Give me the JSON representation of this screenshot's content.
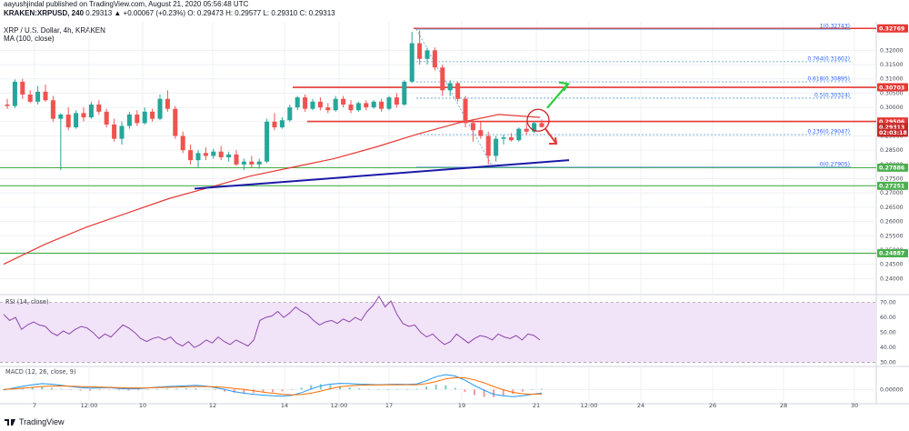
{
  "header": {
    "publisher": "aayushjindal published on TradingView.com, August 21, 2020 05:56:48 UTC",
    "symbol": "KRAKEN:XRPUSD, 240",
    "ohlc": "0.29313 ▲ +0.00067 (+0.23%) O: 0.29473 H: 0.29577 L: 0.29310 C: 0.29313"
  },
  "legend": {
    "title": "XRP / U.S. Dollar, 4h, KRAKEN",
    "ma": "MA (100, close)"
  },
  "footer": {
    "brand": "TradingView"
  },
  "colors": {
    "up": "#26a69a",
    "down": "#ef5350",
    "ma": "#e53935",
    "trendline": "#1a1aa8",
    "support": "#4caf50",
    "resistance": "#e53935",
    "fib": "#5b9bd5",
    "rsi": "#8e44ad",
    "macd_line": "#2196f3",
    "signal_line": "#ff6d00",
    "arrow_up": "#2ecc40"
  },
  "chart_data": [
    {
      "type": "candlestick",
      "title": "XRP / U.S. Dollar, 4h, KRAKEN",
      "ylim": [
        0.235,
        0.33
      ],
      "ticks": [
        "0.32000",
        "0.31500",
        "0.31000",
        "0.30500",
        "0.30000",
        "0.29500",
        "0.29000",
        "0.28500",
        "0.28000",
        "0.27500",
        "0.27000",
        "0.26500",
        "0.26000",
        "0.25500",
        "0.25000",
        "0.24500",
        "0.24000"
      ],
      "tick_values": [
        0.32,
        0.315,
        0.31,
        0.305,
        0.3,
        0.295,
        0.29,
        0.285,
        0.28,
        0.275,
        0.27,
        0.265,
        0.26,
        0.255,
        0.25,
        0.245,
        0.24
      ],
      "xlim": [
        0,
        1000
      ],
      "x_ticks": [
        "7",
        "12:00",
        "10",
        "12",
        "14",
        "12:00",
        "17",
        "19",
        "21",
        "12:00",
        "24",
        "26",
        "28",
        "30"
      ],
      "x_tick_positions": [
        38,
        98,
        157,
        234,
        313,
        373,
        428,
        508,
        590,
        648,
        705,
        784,
        862,
        940
      ],
      "candles": [
        [
          0.301,
          0.303,
          0.2995,
          0.3005
        ],
        [
          0.3005,
          0.3098,
          0.2998,
          0.309
        ],
        [
          0.309,
          0.31,
          0.303,
          0.3045
        ],
        [
          0.3045,
          0.306,
          0.3015,
          0.302
        ],
        [
          0.302,
          0.3075,
          0.301,
          0.3055
        ],
        [
          0.3055,
          0.308,
          0.302,
          0.3025
        ],
        [
          0.3025,
          0.304,
          0.295,
          0.296
        ],
        [
          0.296,
          0.298,
          0.278,
          0.2975
        ],
        [
          0.2975,
          0.3,
          0.292,
          0.293
        ],
        [
          0.293,
          0.299,
          0.2925,
          0.298
        ],
        [
          0.298,
          0.3,
          0.295,
          0.2965
        ],
        [
          0.2965,
          0.302,
          0.296,
          0.301
        ],
        [
          0.301,
          0.3025,
          0.2975,
          0.2985
        ],
        [
          0.2985,
          0.2995,
          0.293,
          0.294
        ],
        [
          0.294,
          0.296,
          0.288,
          0.289
        ],
        [
          0.289,
          0.295,
          0.287,
          0.2935
        ],
        [
          0.2935,
          0.2985,
          0.2925,
          0.2975
        ],
        [
          0.2975,
          0.299,
          0.2935,
          0.2945
        ],
        [
          0.2945,
          0.3,
          0.294,
          0.2985
        ],
        [
          0.2985,
          0.2995,
          0.295,
          0.296
        ],
        [
          0.296,
          0.3045,
          0.2955,
          0.303
        ],
        [
          0.303,
          0.306,
          0.2985,
          0.2995
        ],
        [
          0.2995,
          0.3005,
          0.289,
          0.29
        ],
        [
          0.29,
          0.2915,
          0.284,
          0.285
        ],
        [
          0.285,
          0.287,
          0.28,
          0.2815
        ],
        [
          0.2815,
          0.285,
          0.279,
          0.284
        ],
        [
          0.284,
          0.286,
          0.2815,
          0.283
        ],
        [
          0.283,
          0.2855,
          0.282,
          0.2845
        ],
        [
          0.2845,
          0.2865,
          0.2815,
          0.2825
        ],
        [
          0.2825,
          0.2845,
          0.281,
          0.2835
        ],
        [
          0.2835,
          0.285,
          0.2795,
          0.28
        ],
        [
          0.28,
          0.282,
          0.278,
          0.281
        ],
        [
          0.281,
          0.283,
          0.279,
          0.28
        ],
        [
          0.28,
          0.282,
          0.2785,
          0.281
        ],
        [
          0.281,
          0.296,
          0.2805,
          0.295
        ],
        [
          0.295,
          0.298,
          0.292,
          0.293
        ],
        [
          0.293,
          0.2965,
          0.2925,
          0.2955
        ],
        [
          0.2955,
          0.301,
          0.295,
          0.3
        ],
        [
          0.3,
          0.304,
          0.299,
          0.3035
        ],
        [
          0.3035,
          0.3045,
          0.2985,
          0.2995
        ],
        [
          0.2995,
          0.303,
          0.299,
          0.302
        ],
        [
          0.302,
          0.3035,
          0.299,
          0.3
        ],
        [
          0.3,
          0.3015,
          0.298,
          0.299
        ],
        [
          0.299,
          0.304,
          0.2985,
          0.303
        ],
        [
          0.303,
          0.304,
          0.3,
          0.301
        ],
        [
          0.301,
          0.3025,
          0.298,
          0.299
        ],
        [
          0.299,
          0.302,
          0.2985,
          0.3015
        ],
        [
          0.3015,
          0.3025,
          0.299,
          0.3
        ],
        [
          0.3,
          0.3025,
          0.2995,
          0.302
        ],
        [
          0.302,
          0.303,
          0.2985,
          0.2995
        ],
        [
          0.2995,
          0.304,
          0.299,
          0.3035
        ],
        [
          0.3035,
          0.305,
          0.3,
          0.301
        ],
        [
          0.301,
          0.3095,
          0.3005,
          0.309
        ],
        [
          0.309,
          0.3265,
          0.3085,
          0.3225
        ],
        [
          0.3225,
          0.327,
          0.315,
          0.317
        ],
        [
          0.317,
          0.321,
          0.315,
          0.32
        ],
        [
          0.32,
          0.321,
          0.313,
          0.314
        ],
        [
          0.314,
          0.315,
          0.304,
          0.306
        ],
        [
          0.306,
          0.3095,
          0.304,
          0.3085
        ],
        [
          0.3085,
          0.309,
          0.302,
          0.303
        ],
        [
          0.303,
          0.304,
          0.293,
          0.2945
        ],
        [
          0.2945,
          0.296,
          0.288,
          0.292
        ],
        [
          0.292,
          0.295,
          0.289,
          0.29
        ],
        [
          0.29,
          0.2915,
          0.28,
          0.283
        ],
        [
          0.283,
          0.29,
          0.281,
          0.289
        ],
        [
          0.289,
          0.2905,
          0.287,
          0.2895
        ],
        [
          0.2895,
          0.291,
          0.288,
          0.2885
        ],
        [
          0.2885,
          0.293,
          0.288,
          0.2925
        ],
        [
          0.2925,
          0.2945,
          0.2905,
          0.2915
        ],
        [
          0.2915,
          0.295,
          0.291,
          0.2945
        ],
        [
          0.2945,
          0.2958,
          0.293,
          0.2931
        ]
      ],
      "ma100": [
        0.245,
        0.252,
        0.258,
        0.263,
        0.268,
        0.272,
        0.276,
        0.279,
        0.282,
        0.286,
        0.2905,
        0.2945,
        0.2975,
        0.2965
      ],
      "levels": [
        {
          "label": "0.32769",
          "value": 0.32769,
          "kind": "resistance"
        },
        {
          "label": "0.30703",
          "value": 0.30703,
          "kind": "resistance"
        },
        {
          "label": "0.29506",
          "value": 0.29506,
          "kind": "resistance"
        },
        {
          "label": "0.29313",
          "value": 0.29313,
          "kind": "price"
        },
        {
          "label": "02:03:18",
          "value": 0.2911,
          "kind": "timer"
        },
        {
          "label": "0.27886",
          "value": 0.27886,
          "kind": "support"
        },
        {
          "label": "0.27251",
          "value": 0.27251,
          "kind": "support"
        },
        {
          "label": "0.24887",
          "value": 0.24887,
          "kind": "support"
        }
      ],
      "fib": [
        {
          "label": "1(0.32743)",
          "value": 0.32743,
          "style": "solid"
        },
        {
          "label": "0.764(0.31602)",
          "value": 0.31602,
          "style": "dash"
        },
        {
          "label": "0.618(0.30895)",
          "value": 0.30895,
          "style": "dash"
        },
        {
          "label": "0.5(0.30324)",
          "value": 0.30324,
          "style": "dash"
        },
        {
          "label": "0.236(0.29047)",
          "value": 0.29047,
          "style": "dash"
        },
        {
          "label": "0(0.27905)",
          "value": 0.27905,
          "style": "solid"
        }
      ],
      "trendline": [
        [
          0.2715,
          0.2815
        ]
      ]
    },
    {
      "type": "line",
      "title": "RSI (14, close)",
      "ylim": [
        28,
        74
      ],
      "ticks": [
        "70.00",
        "60.00",
        "50.00",
        "40.00",
        "30.00"
      ],
      "tick_values": [
        70,
        60,
        50,
        40,
        30
      ],
      "band": [
        30,
        70
      ],
      "values": [
        62,
        58,
        60,
        52,
        55,
        57,
        55,
        54,
        50,
        48,
        51,
        49,
        52,
        54,
        53,
        50,
        46,
        49,
        47,
        51,
        55,
        53,
        50,
        46,
        44,
        46,
        47,
        45,
        47,
        43,
        41,
        44,
        40,
        42,
        45,
        43,
        47,
        44,
        42,
        45,
        43,
        41,
        45,
        58,
        60,
        61,
        64,
        60,
        63,
        67,
        64,
        62,
        58,
        55,
        57,
        58,
        56,
        59,
        57,
        60,
        58,
        64,
        68,
        74,
        67,
        71,
        62,
        56,
        54,
        55,
        50,
        47,
        49,
        45,
        42,
        44,
        49,
        46,
        43,
        46,
        48,
        47,
        45,
        49,
        47,
        46,
        48,
        45,
        49,
        48,
        45
      ]
    },
    {
      "type": "line",
      "title": "MACD (12, 26, close, 9)",
      "ylim": [
        -0.004,
        0.008
      ],
      "ticks": [
        "0.00000"
      ],
      "tick_values": [
        0
      ],
      "macd": [
        -0.0002,
        0.0005,
        0.0012,
        0.0018,
        0.0022,
        0.002,
        0.0016,
        0.0011,
        0.0007,
        0.0005,
        0.0006,
        0.0007,
        0.0004,
        0.0002,
        0.0003,
        0.0006,
        0.0009,
        0.0011,
        0.0012,
        0.0014,
        0.0016,
        0.0013,
        0.0007,
        0.0,
        -0.0008,
        -0.0014,
        -0.0018,
        -0.0021,
        -0.0024,
        -0.0025,
        -0.0022,
        -0.0012,
        0.0002,
        0.0014,
        0.002,
        0.0023,
        0.0022,
        0.002,
        0.0019,
        0.0018,
        0.0019,
        0.002,
        0.0019,
        0.0021,
        0.0033,
        0.0048,
        0.0056,
        0.0051,
        0.0035,
        0.0015,
        -0.0003,
        -0.0018,
        -0.0024,
        -0.0027,
        -0.0024,
        -0.0018,
        -0.0014
      ],
      "signal": [
        0.0,
        0.0002,
        0.0005,
        0.0008,
        0.0011,
        0.0013,
        0.0013,
        0.0012,
        0.0011,
        0.001,
        0.0009,
        0.0008,
        0.0007,
        0.0006,
        0.0006,
        0.0006,
        0.0007,
        0.0008,
        0.0009,
        0.001,
        0.0011,
        0.0011,
        0.001,
        0.0008,
        0.0004,
        0.0,
        -0.0005,
        -0.001,
        -0.0014,
        -0.0018,
        -0.002,
        -0.0019,
        -0.0014,
        -0.0006,
        0.0003,
        0.001,
        0.0014,
        0.0016,
        0.0017,
        0.0017,
        0.0018,
        0.0018,
        0.0018,
        0.0018,
        0.0022,
        0.003,
        0.004,
        0.0045,
        0.0044,
        0.0036,
        0.0025,
        0.0011,
        -0.0001,
        -0.0011,
        -0.0016,
        -0.0018,
        -0.0017
      ]
    }
  ]
}
